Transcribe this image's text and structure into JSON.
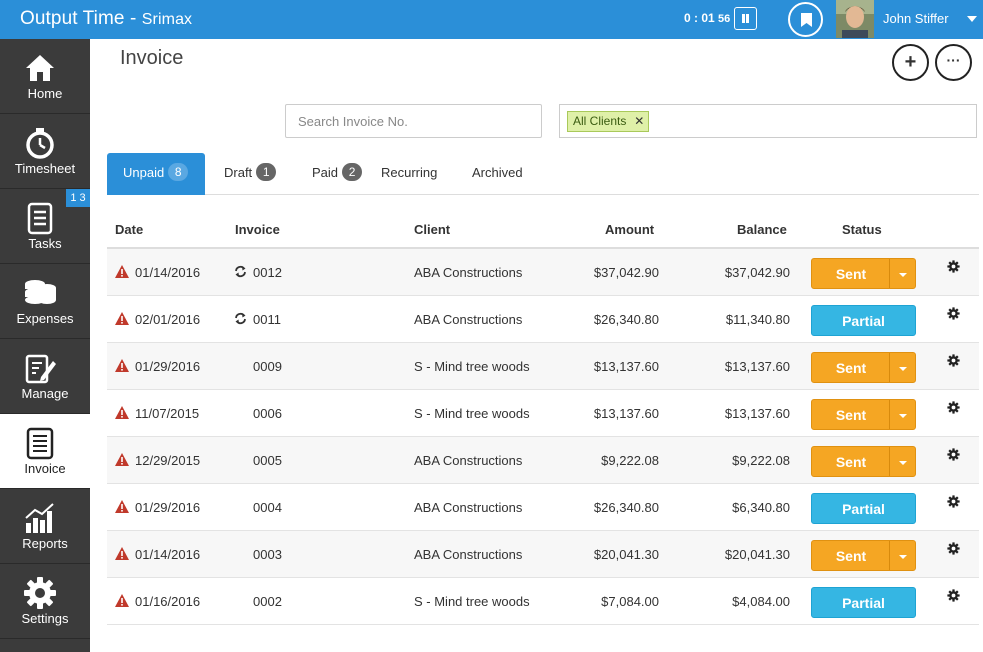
{
  "app": {
    "title": "Output Time",
    "subtitle": "Srimax"
  },
  "timer": {
    "hm": "0 : 01",
    "sec": "56"
  },
  "user": {
    "name": "John Stiffer"
  },
  "sidebar": {
    "items": [
      {
        "label": "Home",
        "icon": "home-icon"
      },
      {
        "label": "Timesheet",
        "icon": "stopwatch-icon"
      },
      {
        "label": "Tasks",
        "icon": "tasks-icon",
        "badge": "1 3"
      },
      {
        "label": "Expenses",
        "icon": "coins-icon"
      },
      {
        "label": "Manage",
        "icon": "edit-icon"
      },
      {
        "label": "Invoice",
        "icon": "invoice-icon"
      },
      {
        "label": "Reports",
        "icon": "chart-icon"
      },
      {
        "label": "Settings",
        "icon": "gear-icon"
      }
    ]
  },
  "page": {
    "title": "Invoice"
  },
  "search": {
    "placeholder": "Search Invoice No."
  },
  "filter": {
    "tag": "All Clients"
  },
  "tabs": [
    {
      "label": "Unpaid",
      "count": "8"
    },
    {
      "label": "Draft",
      "count": "1"
    },
    {
      "label": "Paid",
      "count": "2"
    },
    {
      "label": "Recurring",
      "count": ""
    },
    {
      "label": "Archived",
      "count": ""
    }
  ],
  "table": {
    "headers": {
      "date": "Date",
      "invoice": "Invoice",
      "client": "Client",
      "amount": "Amount",
      "balance": "Balance",
      "status": "Status"
    },
    "rows": [
      {
        "date": "01/14/2016",
        "invoice": "0012",
        "recurring": true,
        "client": "ABA Constructions",
        "amount": "$37,042.90",
        "balance": "$37,042.90",
        "status": "Sent"
      },
      {
        "date": "02/01/2016",
        "invoice": "0011",
        "recurring": true,
        "client": "ABA Constructions",
        "amount": "$26,340.80",
        "balance": "$11,340.80",
        "status": "Partial"
      },
      {
        "date": "01/29/2016",
        "invoice": "0009",
        "recurring": false,
        "client": "S - Mind tree woods",
        "amount": "$13,137.60",
        "balance": "$13,137.60",
        "status": "Sent"
      },
      {
        "date": "11/07/2015",
        "invoice": "0006",
        "recurring": false,
        "client": "S - Mind tree woods",
        "amount": "$13,137.60",
        "balance": "$13,137.60",
        "status": "Sent"
      },
      {
        "date": "12/29/2015",
        "invoice": "0005",
        "recurring": false,
        "client": "ABA Constructions",
        "amount": "$9,222.08",
        "balance": "$9,222.08",
        "status": "Sent"
      },
      {
        "date": "01/29/2016",
        "invoice": "0004",
        "recurring": false,
        "client": "ABA Constructions",
        "amount": "$26,340.80",
        "balance": "$6,340.80",
        "status": "Partial"
      },
      {
        "date": "01/14/2016",
        "invoice": "0003",
        "recurring": false,
        "client": "ABA Constructions",
        "amount": "$20,041.30",
        "balance": "$20,041.30",
        "status": "Sent"
      },
      {
        "date": "01/16/2016",
        "invoice": "0002",
        "recurring": false,
        "client": "S - Mind tree woods",
        "amount": "$7,084.00",
        "balance": "$4,084.00",
        "status": "Partial"
      }
    ]
  },
  "colors": {
    "primary": "#2b8fd8",
    "sidebar": "#3b3b3b",
    "sent": "#f5a623",
    "partial": "#35b6e3",
    "warning": "#c0392b"
  }
}
